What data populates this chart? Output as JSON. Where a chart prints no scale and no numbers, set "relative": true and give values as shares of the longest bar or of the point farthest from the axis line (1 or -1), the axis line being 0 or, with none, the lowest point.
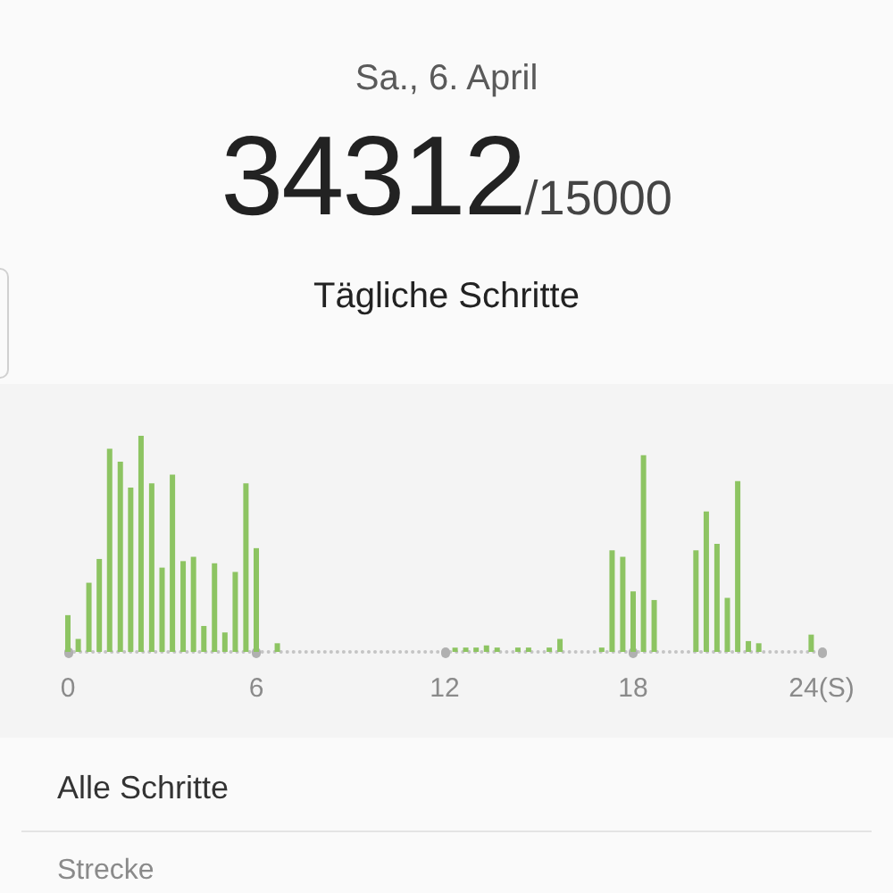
{
  "chart_data": {
    "type": "bar",
    "title": "Sa., 6. April",
    "annotations": [
      "34312",
      "/15000",
      "Tägliche Schritte",
      "Alle Schritte",
      "Strecke"
    ],
    "relative": true,
    "color": "#8dc462",
    "tick_labels": "x",
    "xlim": [
      0,
      24
    ],
    "xticks": [
      0,
      6,
      12,
      18,
      {
        "value": 24,
        "label": "24(S)"
      }
    ],
    "x": [
      0,
      0.33,
      0.67,
      1,
      1.33,
      1.67,
      2,
      2.33,
      2.67,
      3,
      3.33,
      3.67,
      4,
      4.33,
      4.67,
      5,
      5.33,
      5.67,
      6,
      6.67,
      12.33,
      12.67,
      13,
      13.33,
      13.67,
      14.33,
      14.67,
      15.33,
      15.67,
      17,
      17.33,
      17.67,
      18,
      18.33,
      18.67,
      20,
      20.33,
      20.67,
      21,
      21.33,
      21.67,
      22,
      23.67
    ],
    "values": [
      0.17,
      0.06,
      0.32,
      0.43,
      0.94,
      0.88,
      0.76,
      1,
      0.78,
      0.39,
      0.82,
      0.42,
      0.44,
      0.12,
      0.41,
      0.09,
      0.37,
      0.78,
      0.48,
      0.04,
      0.02,
      0.02,
      0.02,
      0.03,
      0.02,
      0.02,
      0.02,
      0.02,
      0.06,
      0.02,
      0.47,
      0.44,
      0.28,
      0.91,
      0.24,
      0.47,
      0.65,
      0.5,
      0.25,
      0.79,
      0.05,
      0.04,
      0.08
    ]
  }
}
